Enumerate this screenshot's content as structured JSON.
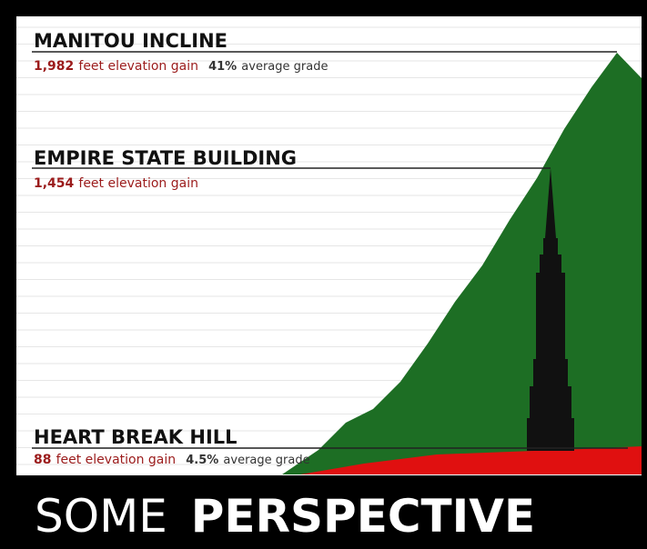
{
  "items": [
    {
      "title": "MANITOU INCLINE",
      "value": "1,982",
      "text": "feet elevation gain",
      "grade": "41%",
      "grade_text": "average grade"
    },
    {
      "title": "EMPIRE STATE BUILDING",
      "value": "1,454",
      "text": "feet elevation gain"
    },
    {
      "title": "HEART BREAK HILL",
      "value": "88",
      "text": "feet elevation gain",
      "grade": "4.5%",
      "grade_text": "average grade"
    }
  ],
  "footer": {
    "light": "SOME",
    "bold": "PERSPECTIVE"
  }
}
